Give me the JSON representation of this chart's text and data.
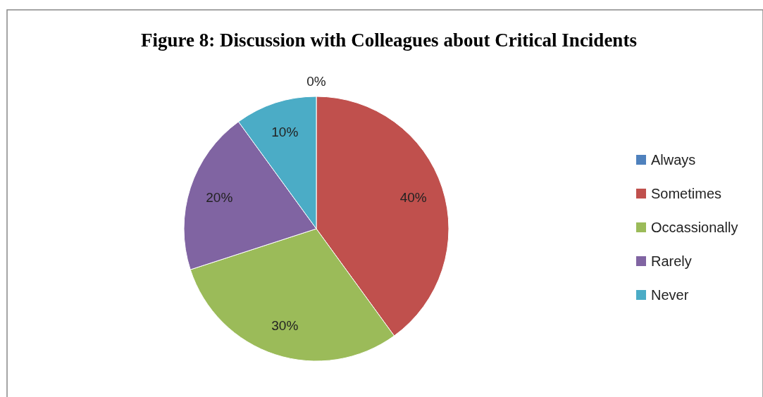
{
  "chart_data": {
    "type": "pie",
    "title": "Figure 8: Discussion with Colleagues about Critical Incidents",
    "categories": [
      "Always",
      "Sometimes",
      "Occassionally",
      "Rarely",
      "Never"
    ],
    "values": [
      0,
      40,
      30,
      20,
      10
    ],
    "value_labels": [
      "0%",
      "40%",
      "30%",
      "20%",
      "10%"
    ],
    "colors": [
      "#4f81bd",
      "#c0504d",
      "#9bbb59",
      "#8064a2",
      "#4bacc6"
    ],
    "legend": "right"
  }
}
